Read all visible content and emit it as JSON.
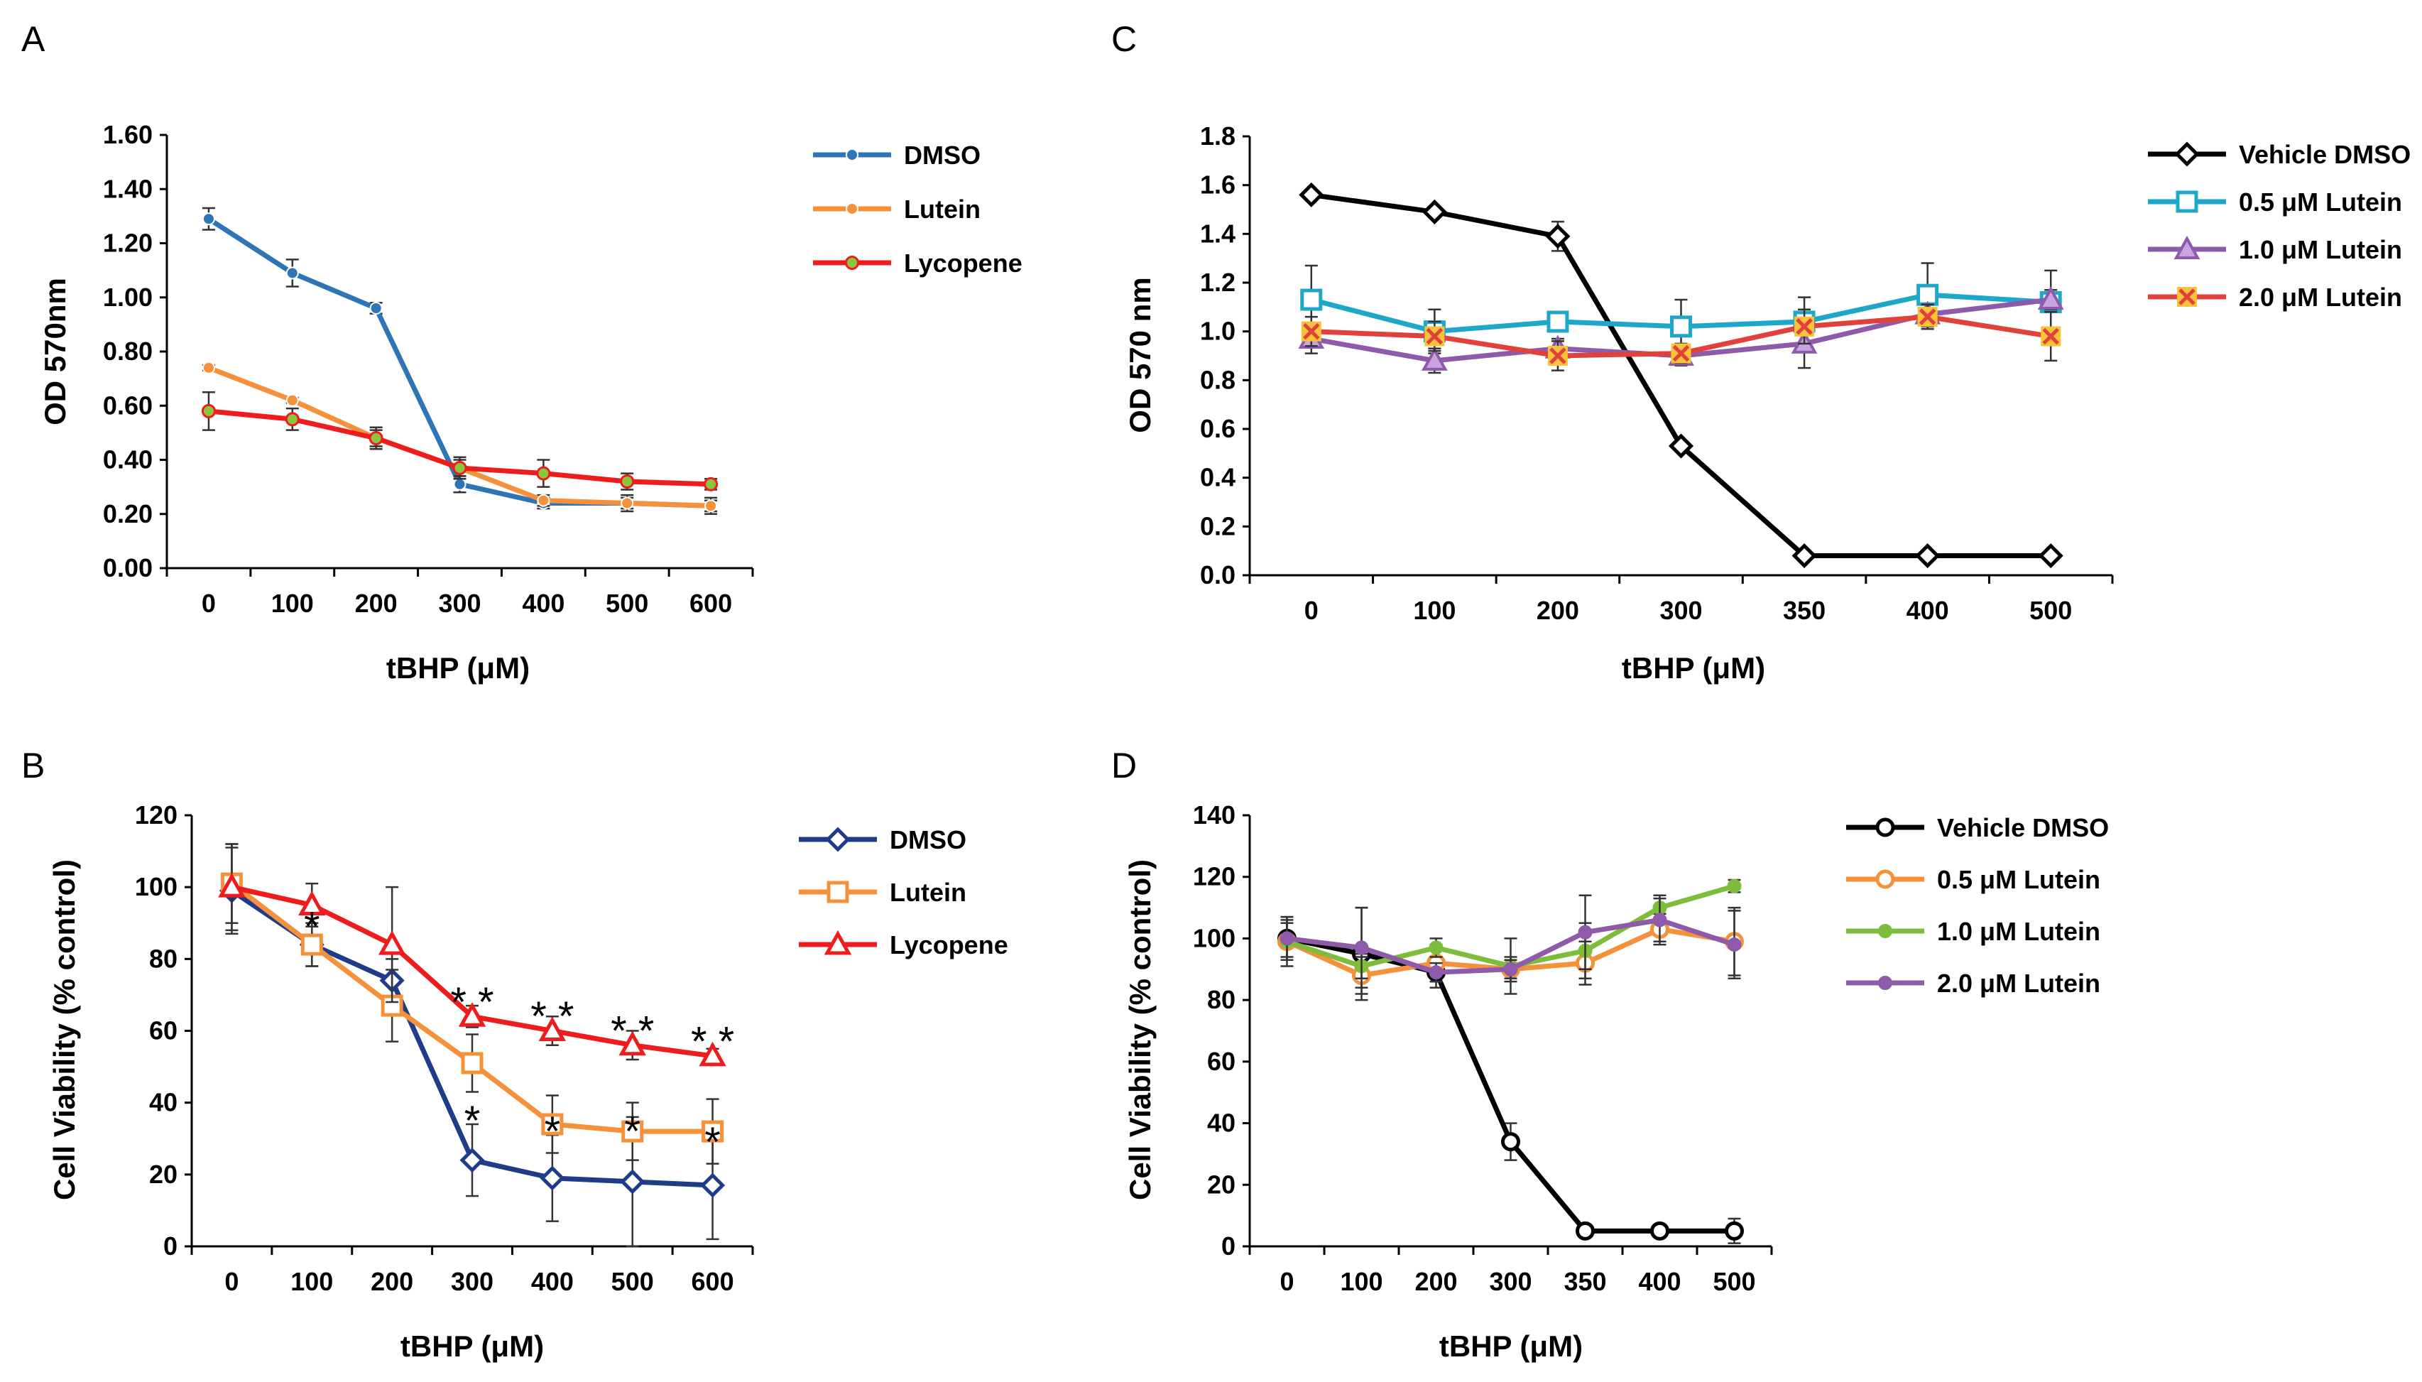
{
  "chart_data": [
    {
      "id": "A",
      "panel_label": "A",
      "type": "line",
      "xlabel": "tBHP (μM)",
      "ylabel": "OD 570nm",
      "categories": [
        "0",
        "100",
        "200",
        "300",
        "400",
        "500",
        "600"
      ],
      "ylim": [
        0,
        1.6
      ],
      "yticks": [
        "0.00",
        "0.20",
        "0.40",
        "0.60",
        "0.80",
        "1.00",
        "1.20",
        "1.40",
        "1.60"
      ],
      "series": [
        {
          "name": "DMSO",
          "color": "#2E75B6",
          "marker": "circle",
          "values": [
            1.29,
            1.09,
            0.96,
            0.31,
            0.24,
            0.24,
            0.23
          ],
          "errors": [
            0.04,
            0.05,
            0.02,
            0.03,
            0.02,
            0.02,
            0.02
          ]
        },
        {
          "name": "Lutein",
          "color": "#F4913A",
          "marker": "circle",
          "values": [
            0.74,
            0.62,
            0.48,
            0.37,
            0.25,
            0.24,
            0.23
          ],
          "errors": [
            0.01,
            0.01,
            0.03,
            0.03,
            0.02,
            0.03,
            0.03
          ]
        },
        {
          "name": "Lycopene",
          "color": "#EE1C1C",
          "marker": "circle-green",
          "values": [
            0.58,
            0.55,
            0.48,
            0.37,
            0.35,
            0.32,
            0.31
          ],
          "errors": [
            0.07,
            0.04,
            0.04,
            0.04,
            0.05,
            0.03,
            0.02
          ]
        }
      ],
      "annotations": []
    },
    {
      "id": "B",
      "panel_label": "B",
      "type": "line",
      "xlabel": "tBHP (μM)",
      "ylabel": "Cell Viability (% control)",
      "categories": [
        "0",
        "100",
        "200",
        "300",
        "400",
        "500",
        "600"
      ],
      "ylim": [
        0,
        120
      ],
      "yticks": [
        "0",
        "20",
        "40",
        "60",
        "80",
        "100",
        "120"
      ],
      "series": [
        {
          "name": "DMSO",
          "color": "#1F3C88",
          "marker": "diamond",
          "values": [
            99,
            84,
            74,
            24,
            19,
            18,
            17
          ],
          "errors": [
            12,
            6,
            6,
            10,
            12,
            18,
            15
          ]
        },
        {
          "name": "Lutein",
          "color": "#F4913A",
          "marker": "square",
          "values": [
            101,
            84,
            67,
            51,
            34,
            32,
            32
          ],
          "errors": [
            11,
            6,
            10,
            8,
            8,
            8,
            9
          ]
        },
        {
          "name": "Lycopene",
          "color": "#EE1C1C",
          "marker": "triangle",
          "values": [
            100,
            95,
            84,
            64,
            60,
            56,
            53
          ],
          "errors": [
            12,
            6,
            16,
            3,
            4,
            4,
            2
          ]
        }
      ],
      "annotations": [
        {
          "text": "*",
          "x": "100",
          "y": 91
        },
        {
          "text": "* *",
          "x": "300",
          "y": 70
        },
        {
          "text": "* *",
          "x": "400",
          "y": 66
        },
        {
          "text": "* *",
          "x": "500",
          "y": 62
        },
        {
          "text": "* *",
          "x": "600",
          "y": 59
        },
        {
          "text": "*",
          "x": "300",
          "y": 37
        },
        {
          "text": "*",
          "x": "400",
          "y": 34
        },
        {
          "text": "*",
          "x": "500",
          "y": 34
        },
        {
          "text": "*",
          "x": "600",
          "y": 31
        }
      ]
    },
    {
      "id": "C",
      "panel_label": "C",
      "type": "line",
      "xlabel": "tBHP (μM)",
      "ylabel": "OD 570 nm",
      "categories": [
        "0",
        "100",
        "200",
        "300",
        "350",
        "400",
        "500"
      ],
      "ylim": [
        0,
        1.8
      ],
      "yticks": [
        "0.0",
        "0.2",
        "0.4",
        "0.6",
        "0.8",
        "1.0",
        "1.2",
        "1.4",
        "1.6",
        "1.8"
      ],
      "series": [
        {
          "name": "Vehicle DMSO",
          "color": "#000000",
          "marker": "diamond-open",
          "values": [
            1.56,
            1.49,
            1.39,
            0.53,
            0.08,
            0.08,
            0.08
          ],
          "errors": [
            0.01,
            0.01,
            0.06,
            0.01,
            0.01,
            0.01,
            0.01
          ]
        },
        {
          "name": "0.5 μM Lutein",
          "color": "#1FA7C9",
          "marker": "square",
          "values": [
            1.13,
            1.0,
            1.04,
            1.02,
            1.04,
            1.15,
            1.12
          ],
          "errors": [
            0.14,
            0.09,
            0.02,
            0.11,
            0.1,
            0.13,
            0.13
          ]
        },
        {
          "name": "1.0 μM Lutein",
          "color": "#8E5BAA",
          "marker": "triangle-filled",
          "values": [
            0.97,
            0.88,
            0.93,
            0.9,
            0.95,
            1.07,
            1.13
          ],
          "errors": [
            0.06,
            0.05,
            0.04,
            0.04,
            0.1,
            0.04,
            0.04
          ]
        },
        {
          "name": "2.0 μM Lutein",
          "color": "#E2403A",
          "marker": "x-box",
          "values": [
            1.0,
            0.98,
            0.9,
            0.91,
            1.02,
            1.06,
            0.98
          ],
          "errors": [
            0.06,
            0.06,
            0.06,
            0.04,
            0.07,
            0.05,
            0.1
          ]
        }
      ],
      "annotations": []
    },
    {
      "id": "D",
      "panel_label": "D",
      "type": "line",
      "xlabel": "tBHP (μM)",
      "ylabel": "Cell Viability (% control)",
      "categories": [
        "0",
        "100",
        "200",
        "300",
        "350",
        "400",
        "500"
      ],
      "ylim": [
        0,
        140
      ],
      "yticks": [
        "0",
        "20",
        "40",
        "60",
        "80",
        "100",
        "120",
        "140"
      ],
      "series": [
        {
          "name": "Vehicle DMSO",
          "color": "#000000",
          "marker": "circle-open",
          "values": [
            100,
            95,
            89,
            34,
            5,
            5,
            5
          ],
          "errors": [
            7,
            15,
            5,
            6,
            2,
            2,
            4
          ]
        },
        {
          "name": "0.5 μM Lutein",
          "color": "#F4913A",
          "marker": "circle-open",
          "values": [
            99,
            88,
            92,
            90,
            92,
            103,
            99
          ],
          "errors": [
            8,
            6,
            6,
            4,
            7,
            5,
            11
          ]
        },
        {
          "name": "1.0 μM Lutein",
          "color": "#7EBD3C",
          "marker": "circle-filled",
          "values": [
            99,
            91,
            97,
            91,
            96,
            110,
            117
          ],
          "errors": [
            6,
            4,
            3,
            9,
            9,
            4,
            2
          ]
        },
        {
          "name": "2.0 μM Lutein",
          "color": "#8E5BAA",
          "marker": "circle-filled",
          "values": [
            100,
            97,
            89,
            90,
            102,
            106,
            98
          ],
          "errors": [
            6,
            13,
            3,
            3,
            12,
            7,
            11
          ]
        }
      ],
      "annotations": []
    }
  ]
}
